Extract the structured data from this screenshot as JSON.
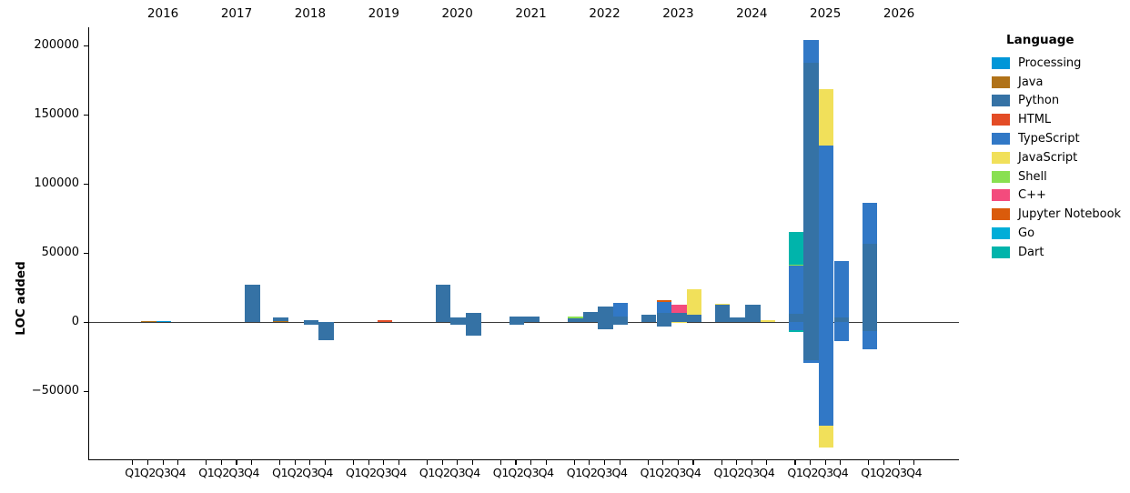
{
  "chart_data": {
    "type": "bar",
    "stacked": true,
    "ylabel": "LOC added",
    "legend_title": "Language",
    "legend_position": "right",
    "grid": false,
    "ylim": [
      -99000,
      213000
    ],
    "yticks": [
      200000,
      150000,
      100000,
      50000,
      0,
      -50000
    ],
    "ytick_labels": [
      "200000",
      "150000",
      "100000",
      "50000",
      "0",
      "−50000"
    ],
    "years": [
      "2016",
      "2017",
      "2018",
      "2019",
      "2020",
      "2021",
      "2022",
      "2023",
      "2024",
      "2025",
      "2026"
    ],
    "quarter_labels": [
      "Q1",
      "Q2",
      "Q3",
      "Q4"
    ],
    "languages": [
      {
        "name": "Processing",
        "color": "#0096D8"
      },
      {
        "name": "Java",
        "color": "#b07219"
      },
      {
        "name": "Python",
        "color": "#3572A5"
      },
      {
        "name": "HTML",
        "color": "#e34c26"
      },
      {
        "name": "TypeScript",
        "color": "#3178c6"
      },
      {
        "name": "JavaScript",
        "color": "#f1e05a"
      },
      {
        "name": "Shell",
        "color": "#89e051"
      },
      {
        "name": "C++",
        "color": "#f34b7d"
      },
      {
        "name": "Jupyter Notebook",
        "color": "#DA5B0B"
      },
      {
        "name": "Go",
        "color": "#00ADD8"
      },
      {
        "name": "Dart",
        "color": "#00B4AB"
      }
    ],
    "bars": [
      {
        "year": "2016",
        "quarter": "Q2",
        "segments": [
          [
            "Java",
            900
          ]
        ]
      },
      {
        "year": "2016",
        "quarter": "Q3",
        "segments": [
          [
            "Processing",
            900
          ]
        ]
      },
      {
        "year": "2017",
        "quarter": "Q4",
        "segments": [
          [
            "Python",
            27500
          ]
        ]
      },
      {
        "year": "2018",
        "quarter": "Q1",
        "segments": [
          [
            "Java",
            900
          ],
          [
            "Python",
            2300
          ]
        ]
      },
      {
        "year": "2018",
        "quarter": "Q3",
        "segments": [
          [
            "Python",
            1800
          ],
          [
            "Python",
            -1500
          ]
        ]
      },
      {
        "year": "2018",
        "quarter": "Q4",
        "segments": [
          [
            "Python",
            -13200
          ]
        ]
      },
      {
        "year": "2019",
        "quarter": "Q3",
        "segments": [
          [
            "HTML",
            1500
          ]
        ]
      },
      {
        "year": "2020",
        "quarter": "Q2",
        "segments": [
          [
            "Python",
            27500
          ]
        ]
      },
      {
        "year": "2020",
        "quarter": "Q3",
        "segments": [
          [
            "Python",
            3600
          ],
          [
            "Python",
            -2000
          ]
        ]
      },
      {
        "year": "2020",
        "quarter": "Q4",
        "segments": [
          [
            "Python",
            7000
          ],
          [
            "Python",
            -9400
          ]
        ]
      },
      {
        "year": "2021",
        "quarter": "Q2",
        "segments": [
          [
            "Python",
            4400
          ],
          [
            "Python",
            -1500
          ]
        ]
      },
      {
        "year": "2021",
        "quarter": "Q3",
        "segments": [
          [
            "Python",
            3900
          ]
        ]
      },
      {
        "year": "2022",
        "quarter": "Q1",
        "segments": [
          [
            "Python",
            2900
          ],
          [
            "Shell",
            1000
          ]
        ]
      },
      {
        "year": "2022",
        "quarter": "Q2",
        "segments": [
          [
            "Python",
            7200
          ]
        ]
      },
      {
        "year": "2022",
        "quarter": "Q3",
        "segments": [
          [
            "Python",
            11600
          ],
          [
            "Python",
            -5300
          ]
        ]
      },
      {
        "year": "2022",
        "quarter": "Q4",
        "segments": [
          [
            "Python",
            4000
          ],
          [
            "TypeScript",
            9800
          ],
          [
            "Python",
            -1800
          ]
        ]
      },
      {
        "year": "2023",
        "quarter": "Q1",
        "segments": [
          [
            "Python",
            5500
          ]
        ]
      },
      {
        "year": "2023",
        "quarter": "Q2",
        "segments": [
          [
            "Python",
            7000
          ],
          [
            "TypeScript",
            7400
          ],
          [
            "Jupyter Notebook",
            1300
          ],
          [
            "Python",
            -3000
          ]
        ]
      },
      {
        "year": "2023",
        "quarter": "Q3",
        "segments": [
          [
            "Python",
            7000
          ],
          [
            "C++",
            5500
          ],
          [
            "JavaScript",
            -700
          ]
        ]
      },
      {
        "year": "2023",
        "quarter": "Q4",
        "segments": [
          [
            "Python",
            5300
          ],
          [
            "JavaScript",
            18900
          ]
        ]
      },
      {
        "year": "2024",
        "quarter": "Q1",
        "segments": [
          [
            "Python",
            12500
          ],
          [
            "JavaScript",
            700
          ]
        ]
      },
      {
        "year": "2024",
        "quarter": "Q2",
        "segments": [
          [
            "Python",
            3700
          ]
        ]
      },
      {
        "year": "2024",
        "quarter": "Q3",
        "segments": [
          [
            "Python",
            13000
          ]
        ]
      },
      {
        "year": "2024",
        "quarter": "Q4",
        "segments": [
          [
            "JavaScript",
            1300
          ]
        ]
      },
      {
        "year": "2025",
        "quarter": "Q1",
        "segments": [
          [
            "Python",
            6000
          ],
          [
            "TypeScript",
            34800
          ],
          [
            "Shell",
            900
          ],
          [
            "Dart",
            23800
          ],
          [
            "TypeScript",
            -5500
          ],
          [
            "Dart",
            -1400
          ]
        ]
      },
      {
        "year": "2025",
        "quarter": "Q2",
        "segments": [
          [
            "Python",
            188000
          ],
          [
            "TypeScript",
            16200
          ],
          [
            "Python",
            -27500
          ],
          [
            "TypeScript",
            -2200
          ]
        ]
      },
      {
        "year": "2025",
        "quarter": "Q3",
        "segments": [
          [
            "TypeScript",
            127600
          ],
          [
            "JavaScript",
            41000
          ],
          [
            "TypeScript",
            -74800
          ],
          [
            "JavaScript",
            -15800
          ]
        ]
      },
      {
        "year": "2025",
        "quarter": "Q4",
        "segments": [
          [
            "Python",
            3800
          ],
          [
            "TypeScript",
            40600
          ],
          [
            "TypeScript",
            -13700
          ]
        ]
      },
      {
        "year": "2026",
        "quarter": "Q1",
        "segments": [
          [
            "Python",
            57000
          ],
          [
            "TypeScript",
            29600
          ],
          [
            "Python",
            -6500
          ],
          [
            "TypeScript",
            -13000
          ]
        ]
      }
    ]
  }
}
